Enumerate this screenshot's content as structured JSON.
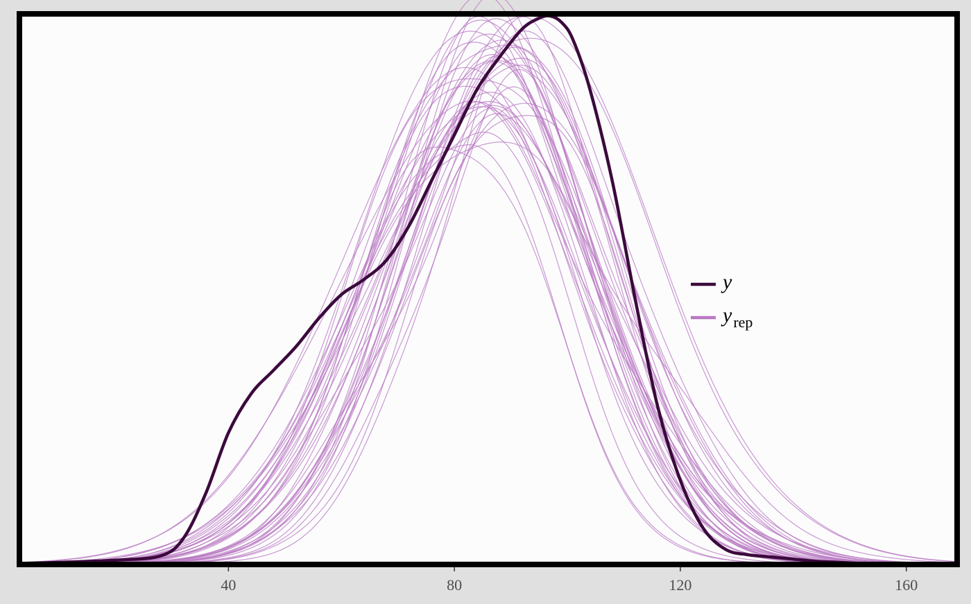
{
  "chart_data": {
    "type": "line",
    "title": "",
    "xlabel": "",
    "ylabel": "",
    "xlim": [
      3,
      169
    ],
    "ylim": [
      0,
      0.0255
    ],
    "x_ticks": [
      40,
      80,
      120,
      160
    ],
    "x_tick_labels": [
      "40",
      "80",
      "120",
      "160"
    ],
    "grid": false,
    "legend": {
      "placement": "right",
      "entries": [
        {
          "label": "y",
          "subscript": "",
          "color": "#3b0a3c"
        },
        {
          "label": "y",
          "subscript": "rep",
          "color": "#b878c2"
        }
      ]
    },
    "colors": {
      "y": "#3b0a3c",
      "yrep": "#b878c2",
      "panel_background": "#fcfcfd",
      "outer_background": "#e0e0e0",
      "panel_border": "#000000"
    },
    "series": [
      {
        "name": "y",
        "x": [
          3,
          10,
          20,
          28,
          32,
          36,
          40,
          44,
          48,
          52,
          56,
          60,
          64,
          68,
          72,
          76,
          80,
          84,
          88,
          92,
          95,
          97,
          99,
          101,
          104,
          108,
          112,
          116,
          120,
          124,
          128,
          132,
          136,
          140,
          144,
          148,
          152,
          160,
          169
        ],
        "y": [
          5e-05,
          0.0001,
          0.0002,
          0.0004,
          0.0012,
          0.0033,
          0.0061,
          0.0079,
          0.009,
          0.0101,
          0.0114,
          0.0125,
          0.0132,
          0.0141,
          0.0157,
          0.0178,
          0.0199,
          0.022,
          0.0235,
          0.0248,
          0.0253,
          0.0254,
          0.0251,
          0.0243,
          0.022,
          0.0177,
          0.0123,
          0.0073,
          0.0039,
          0.0017,
          0.0007,
          0.00045,
          0.00035,
          0.00025,
          0.00015,
          0.0001,
          5e-05,
          2e-05,
          1e-05
        ]
      }
    ],
    "yrep_draws": {
      "count": 40,
      "mean": 87,
      "sd_range": [
        16,
        21.5
      ],
      "peak_range": [
        0.0195,
        0.0255
      ],
      "x_range": [
        3,
        169
      ]
    }
  }
}
